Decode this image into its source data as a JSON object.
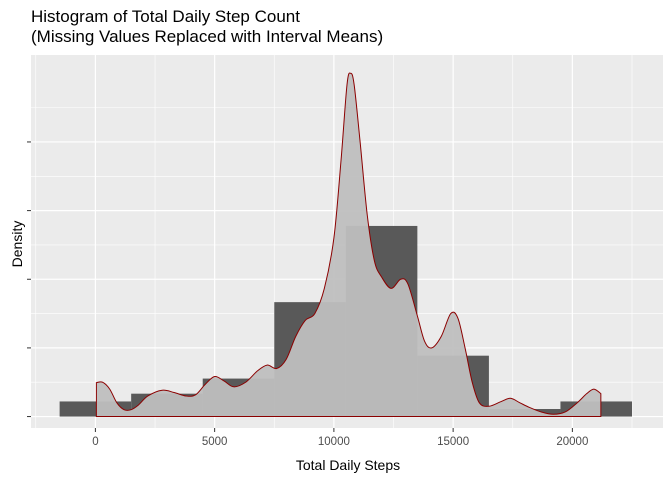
{
  "chart_data": {
    "type": "histogram",
    "title_line1": "Histogram of Total Daily Step Count",
    "title_line2": "(Missing Values Replaced with Interval Means)",
    "xlabel": "Total Daily Steps",
    "ylabel": "Density",
    "xlim": [
      -2700,
      23800
    ],
    "ylim": [
      -5e-06,
      0.000158
    ],
    "x_ticks": [
      0,
      5000,
      10000,
      15000,
      20000
    ],
    "y_ticks_count": 5,
    "y_tick_values": [
      0,
      3e-05,
      6e-05,
      9e-05,
      0.00012
    ],
    "y_tick_labels_shown": false,
    "grid": true,
    "panel_background": "#ebebeb",
    "grid_color": "#ffffff",
    "histogram": {
      "fill": "#595959",
      "bins": [
        {
          "x0": -1500,
          "x1": 1500,
          "density": 6.6e-06
        },
        {
          "x0": 1500,
          "x1": 4500,
          "density": 1e-05
        },
        {
          "x0": 4500,
          "x1": 7500,
          "density": 1.66e-05
        },
        {
          "x0": 7500,
          "x1": 10500,
          "density": 5e-05
        },
        {
          "x0": 10500,
          "x1": 13500,
          "density": 8.33e-05
        },
        {
          "x0": 13500,
          "x1": 16500,
          "density": 2.66e-05
        },
        {
          "x0": 16500,
          "x1": 19500,
          "density": 3.3e-06
        },
        {
          "x0": 19500,
          "x1": 22500,
          "density": 6.6e-06
        }
      ]
    },
    "density_curve": {
      "fill": "#bfbfbf",
      "line_color": "#8b0000",
      "points": [
        [
          41,
          0.0
        ],
        [
          41,
          1.48e-05
        ],
        [
          300,
          1.5e-05
        ],
        [
          600,
          1.2e-05
        ],
        [
          900,
          6e-06
        ],
        [
          1200,
          3e-06
        ],
        [
          1500,
          3e-06
        ],
        [
          1800,
          5e-06
        ],
        [
          2200,
          9e-06
        ],
        [
          2800,
          1.15e-05
        ],
        [
          3300,
          1.05e-05
        ],
        [
          3800,
          9e-06
        ],
        [
          4200,
          9.5e-06
        ],
        [
          4600,
          1.4e-05
        ],
        [
          5000,
          1.75e-05
        ],
        [
          5400,
          1.55e-05
        ],
        [
          5800,
          1.3e-05
        ],
        [
          6300,
          1.5e-05
        ],
        [
          6800,
          2e-05
        ],
        [
          7200,
          2.25e-05
        ],
        [
          7600,
          2.1e-05
        ],
        [
          8000,
          2.5e-05
        ],
        [
          8400,
          3.5e-05
        ],
        [
          8800,
          4.2e-05
        ],
        [
          9200,
          4.5e-05
        ],
        [
          9600,
          5.6e-05
        ],
        [
          10000,
          7.8e-05
        ],
        [
          10300,
          0.000112
        ],
        [
          10550,
          0.000145
        ],
        [
          10700,
          0.00015
        ],
        [
          10850,
          0.000145
        ],
        [
          11100,
          0.00012
        ],
        [
          11400,
          8.8e-05
        ],
        [
          11700,
          6.8e-05
        ],
        [
          12000,
          6.1e-05
        ],
        [
          12400,
          5.6e-05
        ],
        [
          12800,
          6e-05
        ],
        [
          13100,
          5.8e-05
        ],
        [
          13500,
          4.4e-05
        ],
        [
          13800,
          3.3e-05
        ],
        [
          14100,
          3e-05
        ],
        [
          14500,
          3.5e-05
        ],
        [
          14900,
          4.5e-05
        ],
        [
          15200,
          4.3e-05
        ],
        [
          15500,
          3e-05
        ],
        [
          15800,
          1.5e-05
        ],
        [
          16100,
          6e-06
        ],
        [
          16500,
          4.5e-06
        ],
        [
          17000,
          6.5e-06
        ],
        [
          17400,
          8e-06
        ],
        [
          17800,
          6e-06
        ],
        [
          18200,
          4e-06
        ],
        [
          18700,
          2e-06
        ],
        [
          19200,
          1e-06
        ],
        [
          19700,
          2e-06
        ],
        [
          20200,
          6e-06
        ],
        [
          20600,
          1e-05
        ],
        [
          20900,
          1.2e-05
        ],
        [
          21194,
          1e-05
        ],
        [
          21194,
          0.0
        ]
      ]
    }
  }
}
